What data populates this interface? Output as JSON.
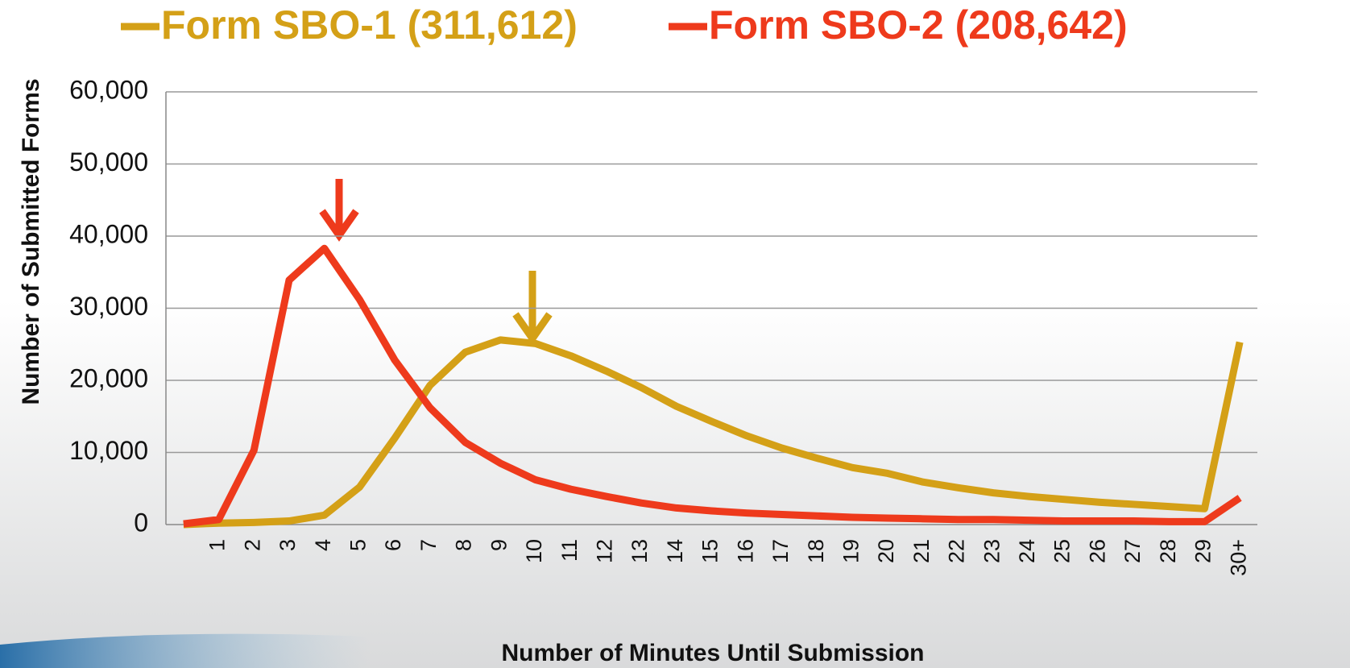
{
  "chart_data": {
    "type": "line",
    "x_label": "Number of Minutes Until Submission",
    "y_label": "Number of Submitted Forms",
    "categories": [
      null,
      "1",
      "2",
      "3",
      "4",
      "5",
      "6",
      "7",
      "8",
      "9",
      "10",
      "11",
      "12",
      "13",
      "14",
      "15",
      "16",
      "17",
      "18",
      "19",
      "20",
      "21",
      "22",
      "23",
      "24",
      "25",
      "26",
      "27",
      "28",
      "29",
      "30+"
    ],
    "series": [
      {
        "name": "Form SBO-1 (311,612)",
        "color": "#d4a017",
        "values": [
          0,
          200,
          300,
          500,
          1300,
          5200,
          12000,
          19300,
          23900,
          25600,
          25100,
          23400,
          21300,
          19000,
          16400,
          14300,
          12300,
          10600,
          9200,
          7900,
          7100,
          5900,
          5100,
          4400,
          3900,
          3500,
          3100,
          2800,
          2500,
          2200,
          25300
        ]
      },
      {
        "name": "Form SBO-2 (208,642)",
        "color": "#ee3a1c",
        "values": [
          100,
          700,
          10300,
          33900,
          38300,
          31200,
          22800,
          16200,
          11400,
          8500,
          6200,
          4900,
          3900,
          3000,
          2300,
          1900,
          1600,
          1400,
          1200,
          1000,
          900,
          800,
          700,
          700,
          600,
          500,
          500,
          500,
          400,
          400,
          3700
        ]
      }
    ],
    "ylim": [
      0,
      60000
    ],
    "yticks": [
      0,
      {
        "value": 10000,
        "label": "10,000"
      },
      {
        "value": 20000,
        "label": "20,000"
      },
      {
        "value": 30000,
        "label": "30,000"
      },
      {
        "value": 40000,
        "label": "40,000"
      },
      {
        "value": 50000,
        "label": "50,000"
      },
      {
        "value": 60000,
        "label": "60,000"
      }
    ],
    "grid": true,
    "legend": "top"
  }
}
